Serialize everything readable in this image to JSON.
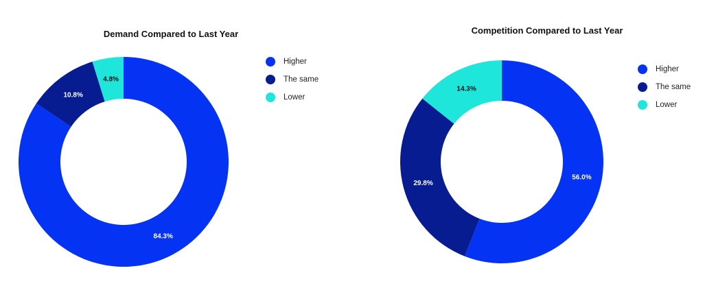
{
  "chart_data": [
    {
      "type": "pie",
      "title": "Demand Compared to Last Year",
      "categories": [
        "Higher",
        "The same",
        "Lower"
      ],
      "values": [
        84.3,
        10.8,
        4.8
      ],
      "labels": [
        "84.3%",
        "10.8%",
        "4.8%"
      ],
      "colors": [
        "#0533f3",
        "#061c90",
        "#1ee6da"
      ],
      "label_colors": [
        "#ffffff",
        "#ffffff",
        "#111111"
      ],
      "legend": "right"
    },
    {
      "type": "pie",
      "title": "Competition Compared to Last Year",
      "categories": [
        "Higher",
        "The same",
        "Lower"
      ],
      "values": [
        56.0,
        29.8,
        14.3
      ],
      "labels": [
        "56.0%",
        "29.8%",
        "14.3%"
      ],
      "colors": [
        "#0533f3",
        "#061c90",
        "#1ee6da"
      ],
      "label_colors": [
        "#ffffff",
        "#ffffff",
        "#111111"
      ],
      "legend": "right"
    }
  ]
}
